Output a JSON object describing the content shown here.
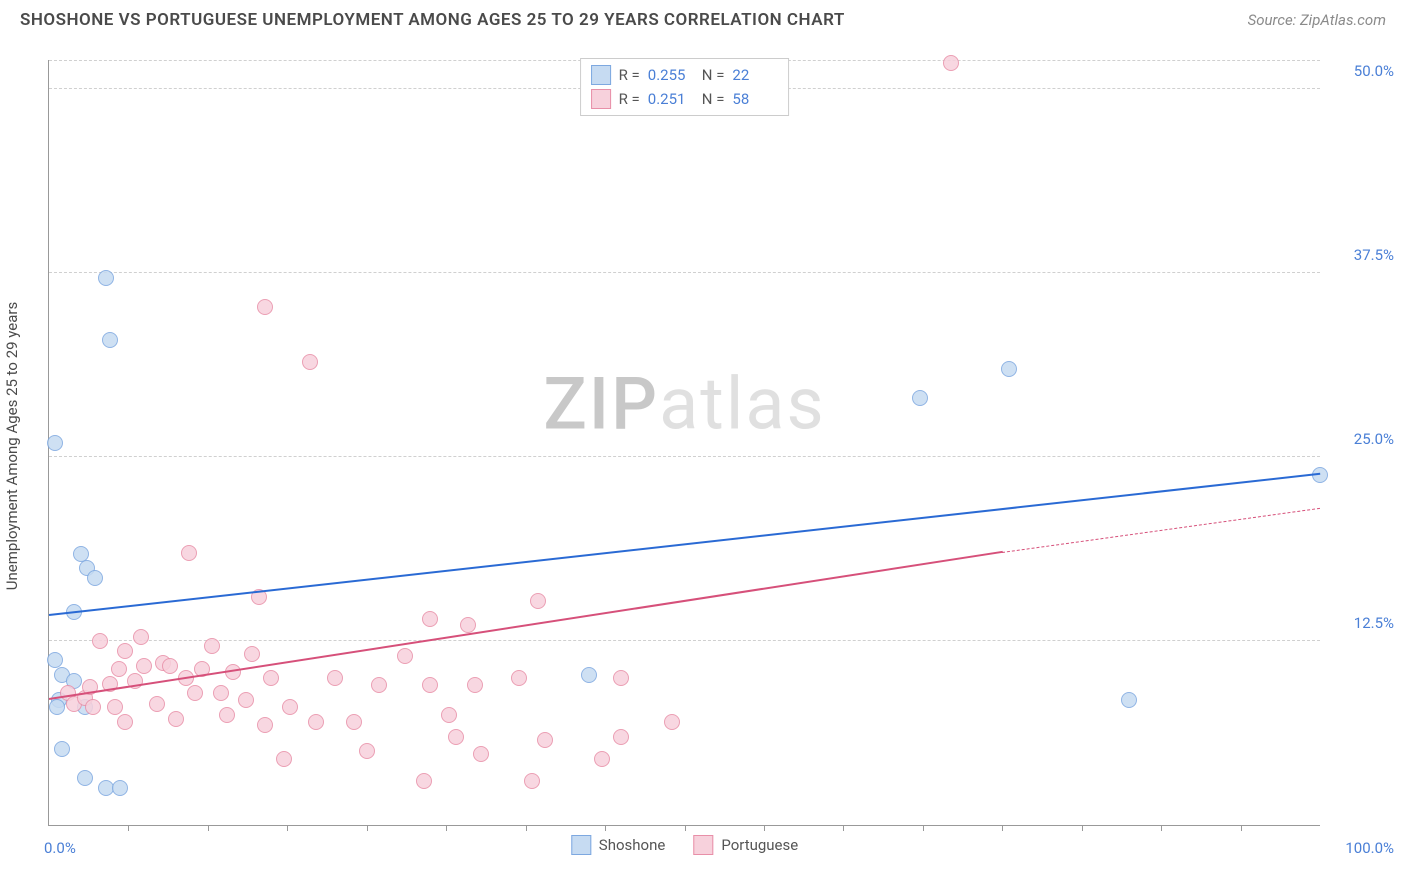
{
  "title": "SHOSHONE VS PORTUGUESE UNEMPLOYMENT AMONG AGES 25 TO 29 YEARS CORRELATION CHART",
  "source": "Source: ZipAtlas.com",
  "ylabel": "Unemployment Among Ages 25 to 29 years",
  "watermark_a": "ZIP",
  "watermark_b": "atlas",
  "chart": {
    "type": "scatter",
    "xlim": [
      0,
      100
    ],
    "ylim": [
      0,
      52
    ],
    "xticks_minor": [
      6.25,
      12.5,
      18.75,
      25,
      31.25,
      37.5,
      43.75,
      50,
      56.25,
      62.5,
      68.75,
      75,
      81.25,
      87.5,
      93.75
    ],
    "xlim_labels": {
      "min": "0.0%",
      "max": "100.0%"
    },
    "yticks": [
      {
        "v": 12.5,
        "label": "12.5%"
      },
      {
        "v": 25,
        "label": "25.0%"
      },
      {
        "v": 37.5,
        "label": "37.5%"
      },
      {
        "v": 50,
        "label": "50.0%"
      }
    ],
    "grid_color": "#d0d0d0",
    "background": "#ffffff",
    "marker_radius": 8,
    "series": [
      {
        "name": "Shoshone",
        "fill": "#c6dbf2",
        "stroke": "#7da8e0",
        "R": "0.255",
        "N": "22",
        "trend": {
          "x0": 0,
          "y0": 14.2,
          "x1": 100,
          "y1": 23.8,
          "color": "#2a6ad4",
          "width": 2.5,
          "dash": false
        },
        "points": [
          [
            0.5,
            26.0
          ],
          [
            4.5,
            37.2
          ],
          [
            4.8,
            33.0
          ],
          [
            0.5,
            11.2
          ],
          [
            2.5,
            18.4
          ],
          [
            3.0,
            17.5
          ],
          [
            3.6,
            16.8
          ],
          [
            2.0,
            14.5
          ],
          [
            1.0,
            10.2
          ],
          [
            0.8,
            8.5
          ],
          [
            0.6,
            8.0
          ],
          [
            2.0,
            9.8
          ],
          [
            2.8,
            8.0
          ],
          [
            1.0,
            5.2
          ],
          [
            2.8,
            3.2
          ],
          [
            4.5,
            2.5
          ],
          [
            5.6,
            2.5
          ],
          [
            42.5,
            10.2
          ],
          [
            68.5,
            29.0
          ],
          [
            75.5,
            31.0
          ],
          [
            85.0,
            8.5
          ],
          [
            100.0,
            23.8
          ]
        ]
      },
      {
        "name": "Portuguese",
        "fill": "#f7d1dc",
        "stroke": "#e88fa8",
        "R": "0.251",
        "N": "58",
        "trend": {
          "x0": 0,
          "y0": 8.5,
          "x1": 75,
          "y1": 18.5,
          "color": "#d6507a",
          "width": 2.5,
          "dash": false
        },
        "trend_ext": {
          "x0": 75,
          "y0": 18.5,
          "x1": 100,
          "y1": 21.5,
          "color": "#d6507a",
          "width": 1.5,
          "dash": true
        },
        "points": [
          [
            17.0,
            35.2
          ],
          [
            20.5,
            31.5
          ],
          [
            71.0,
            51.8
          ],
          [
            11.0,
            18.5
          ],
          [
            16.5,
            15.5
          ],
          [
            30.0,
            14.0
          ],
          [
            38.5,
            15.2
          ],
          [
            4.0,
            12.5
          ],
          [
            6.0,
            11.8
          ],
          [
            7.2,
            12.8
          ],
          [
            9.0,
            11.0
          ],
          [
            1.5,
            9.0
          ],
          [
            2.0,
            8.2
          ],
          [
            2.8,
            8.6
          ],
          [
            3.2,
            9.4
          ],
          [
            3.5,
            8.0
          ],
          [
            4.8,
            9.6
          ],
          [
            5.2,
            8.0
          ],
          [
            5.5,
            10.6
          ],
          [
            6.0,
            7.0
          ],
          [
            6.8,
            9.8
          ],
          [
            7.5,
            10.8
          ],
          [
            8.5,
            8.2
          ],
          [
            9.5,
            10.8
          ],
          [
            10.0,
            7.2
          ],
          [
            10.8,
            10.0
          ],
          [
            11.5,
            9.0
          ],
          [
            12.0,
            10.6
          ],
          [
            12.8,
            12.2
          ],
          [
            13.5,
            9.0
          ],
          [
            14.0,
            7.5
          ],
          [
            14.5,
            10.4
          ],
          [
            15.5,
            8.5
          ],
          [
            16.0,
            11.6
          ],
          [
            17.0,
            6.8
          ],
          [
            17.5,
            10.0
          ],
          [
            18.5,
            4.5
          ],
          [
            19.0,
            8.0
          ],
          [
            21.0,
            7.0
          ],
          [
            22.5,
            10.0
          ],
          [
            24.0,
            7.0
          ],
          [
            25.0,
            5.0
          ],
          [
            26.0,
            9.5
          ],
          [
            28.0,
            11.5
          ],
          [
            29.5,
            3.0
          ],
          [
            30.0,
            9.5
          ],
          [
            32.0,
            6.0
          ],
          [
            33.0,
            13.6
          ],
          [
            33.5,
            9.5
          ],
          [
            34.0,
            4.8
          ],
          [
            37.0,
            10.0
          ],
          [
            38.0,
            3.0
          ],
          [
            39.0,
            5.8
          ],
          [
            43.5,
            4.5
          ],
          [
            45.0,
            6.0
          ],
          [
            49.0,
            7.0
          ],
          [
            45.0,
            10.0
          ],
          [
            31.5,
            7.5
          ]
        ]
      }
    ]
  },
  "legend_bottom": [
    "Shoshone",
    "Portuguese"
  ]
}
